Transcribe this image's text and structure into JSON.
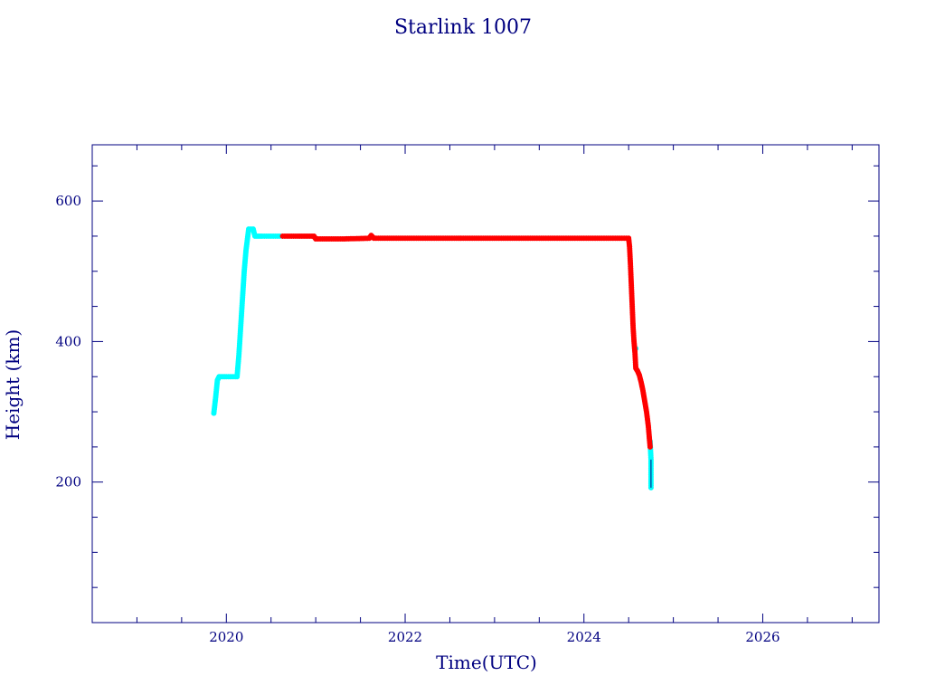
{
  "chart_data": {
    "type": "scatter",
    "title": "Starlink 1007",
    "xlabel": "Time(UTC)",
    "ylabel": "Height (km)",
    "xlim": [
      2018.5,
      2027.3
    ],
    "ylim": [
      0,
      680
    ],
    "x_ticks": [
      2020,
      2022,
      2024,
      2026
    ],
    "y_ticks": [
      200,
      400,
      600
    ],
    "grid": false,
    "colors": {
      "axis": "#000080",
      "phase_a": "#00ffff",
      "phase_b": "#ff0000"
    },
    "series": [
      {
        "color": "#00ffff",
        "points": [
          [
            2019.86,
            298
          ],
          [
            2019.88,
            320
          ],
          [
            2019.9,
            345
          ],
          [
            2019.92,
            350
          ],
          [
            2020.0,
            350
          ],
          [
            2020.05,
            350
          ],
          [
            2020.1,
            350
          ],
          [
            2020.12,
            350
          ],
          [
            2020.14,
            380
          ],
          [
            2020.16,
            420
          ],
          [
            2020.18,
            460
          ],
          [
            2020.2,
            500
          ],
          [
            2020.22,
            530
          ],
          [
            2020.25,
            560
          ],
          [
            2020.3,
            560
          ],
          [
            2020.32,
            550
          ],
          [
            2020.4,
            550
          ],
          [
            2020.5,
            550
          ],
          [
            2020.6,
            550
          ],
          [
            2024.58,
            390
          ],
          [
            2024.74,
            258
          ],
          [
            2024.75,
            232
          ],
          [
            2024.75,
            192
          ]
        ]
      },
      {
        "color": "#ff0000",
        "points": [
          [
            2020.63,
            550
          ],
          [
            2020.8,
            550
          ],
          [
            2020.98,
            550
          ],
          [
            2021.0,
            546
          ],
          [
            2021.3,
            546
          ],
          [
            2021.6,
            547
          ],
          [
            2021.62,
            551
          ],
          [
            2021.65,
            547
          ],
          [
            2022.0,
            547
          ],
          [
            2022.5,
            547
          ],
          [
            2023.0,
            547
          ],
          [
            2023.5,
            547
          ],
          [
            2024.0,
            547
          ],
          [
            2024.5,
            547
          ],
          [
            2024.51,
            535
          ],
          [
            2024.52,
            510
          ],
          [
            2024.53,
            480
          ],
          [
            2024.54,
            450
          ],
          [
            2024.55,
            420
          ],
          [
            2024.56,
            400
          ],
          [
            2024.57,
            385
          ],
          [
            2024.58,
            362
          ],
          [
            2024.6,
            358
          ],
          [
            2024.62,
            352
          ],
          [
            2024.64,
            342
          ],
          [
            2024.66,
            330
          ],
          [
            2024.68,
            315
          ],
          [
            2024.7,
            300
          ],
          [
            2024.72,
            280
          ],
          [
            2024.73,
            265
          ],
          [
            2024.74,
            250
          ]
        ]
      }
    ]
  }
}
